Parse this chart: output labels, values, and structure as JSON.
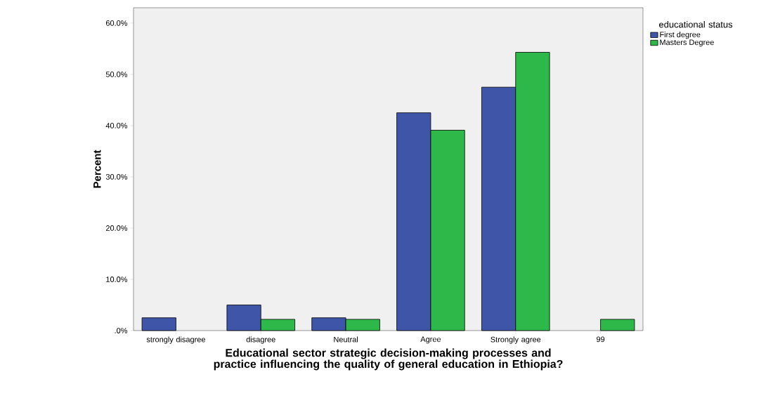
{
  "chart_data": {
    "type": "bar",
    "xlabel": "Educational sector strategic decision-making processes and practice influencing the quality of general education in Ethiopia?",
    "ylabel": "Percent",
    "legend_title": "educational status",
    "categories": [
      "strongly disagree",
      "disagree",
      "Neutral",
      "Agree",
      "Strongly agree",
      "99"
    ],
    "series": [
      {
        "name": "First degree",
        "color": "#3f56a8",
        "values": [
          2.5,
          5.0,
          2.5,
          42.5,
          47.5,
          null
        ]
      },
      {
        "name": "Masters Degree",
        "color": "#2fb84a",
        "values": [
          null,
          2.2,
          2.2,
          39.1,
          54.3,
          2.2
        ]
      }
    ],
    "ylim": [
      0,
      63
    ],
    "yticks": [
      {
        "value": 0,
        "label": ".0%"
      },
      {
        "value": 10,
        "label": "10.0%"
      },
      {
        "value": 20,
        "label": "20.0%"
      },
      {
        "value": 30,
        "label": "30.0%"
      },
      {
        "value": 40,
        "label": "40.0%"
      },
      {
        "value": 50,
        "label": "50.0%"
      },
      {
        "value": 60,
        "label": "60.0%"
      }
    ],
    "grid": false,
    "legend": "right"
  }
}
